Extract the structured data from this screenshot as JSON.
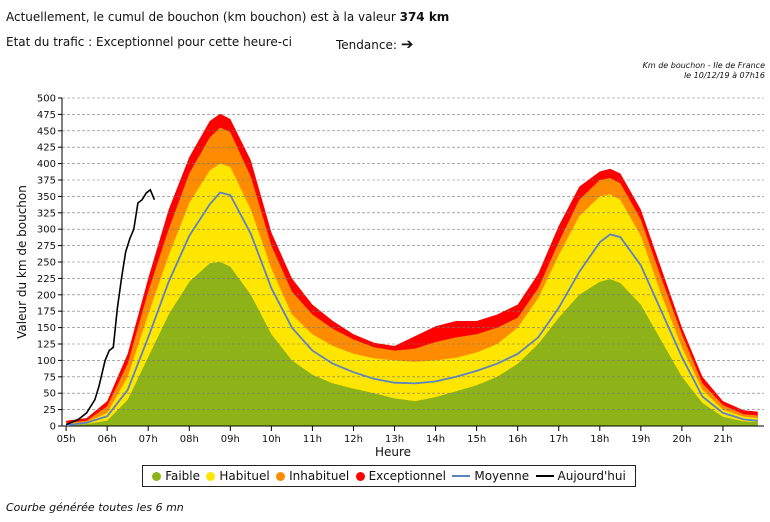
{
  "header": {
    "line1_prefix": "Actuellement, le cumul de bouchon (km bouchon) est à la valeur",
    "line1_value": "374 km",
    "line2": "Etat du trafic : Exceptionnel pour cette heure-ci",
    "trend_label": "Tendance:",
    "trend_icon": "right-arrow-icon",
    "stamp_line1": "Km de bouchon - Ile de France",
    "stamp_line2": "le 10/12/19 à 07h16"
  },
  "footer": "Courbe générée toutes les 6 mn",
  "colors": {
    "faible": "#8db319",
    "habituel": "#ffe600",
    "inhabituel": "#ff8c00",
    "exceptionnel": "#ff0000",
    "moyenne": "#5b83c0",
    "aujourdhui": "#000000"
  },
  "legend": [
    {
      "label": "Faible",
      "key": "faible",
      "kind": "dot"
    },
    {
      "label": "Habituel",
      "key": "habituel",
      "kind": "dot"
    },
    {
      "label": "Inhabituel",
      "key": "inhabituel",
      "kind": "dot"
    },
    {
      "label": "Exceptionnel",
      "key": "exceptionnel",
      "kind": "dot"
    },
    {
      "label": "Moyenne",
      "key": "moyenne",
      "kind": "line"
    },
    {
      "label": "Aujourd'hui",
      "key": "aujourdhui",
      "kind": "line"
    }
  ],
  "chart_data": {
    "type": "area",
    "title": "Km de bouchon - Ile de France",
    "xlabel": "Heure",
    "ylabel": "Valeur du  km de bouchon",
    "xlim": [
      4.9,
      22
    ],
    "ylim": [
      0,
      500
    ],
    "yticks": [
      0,
      25,
      50,
      75,
      100,
      125,
      150,
      175,
      200,
      225,
      250,
      275,
      300,
      325,
      350,
      375,
      400,
      425,
      450,
      475,
      500
    ],
    "xticks": [
      {
        "h": 5,
        "label": "05h"
      },
      {
        "h": 6,
        "label": "06h"
      },
      {
        "h": 7,
        "label": "07h"
      },
      {
        "h": 8,
        "label": "08h"
      },
      {
        "h": 9,
        "label": "09h"
      },
      {
        "h": 10,
        "label": "10h"
      },
      {
        "h": 11,
        "label": "11h"
      },
      {
        "h": 12,
        "label": "12h"
      },
      {
        "h": 13,
        "label": "13h"
      },
      {
        "h": 14,
        "label": "14h"
      },
      {
        "h": 15,
        "label": "15h"
      },
      {
        "h": 16,
        "label": "16h"
      },
      {
        "h": 17,
        "label": "17h"
      },
      {
        "h": 18,
        "label": "18h"
      },
      {
        "h": 19,
        "label": "19h"
      },
      {
        "h": 20,
        "label": "20h"
      },
      {
        "h": 21,
        "label": "21h"
      }
    ],
    "grid": true,
    "x": [
      5.0,
      5.5,
      6.0,
      6.5,
      7.0,
      7.5,
      8.0,
      8.5,
      8.75,
      9.0,
      9.5,
      10.0,
      10.5,
      11.0,
      11.5,
      12.0,
      12.5,
      13.0,
      13.5,
      14.0,
      14.5,
      15.0,
      15.5,
      16.0,
      16.5,
      17.0,
      17.5,
      18.0,
      18.25,
      18.5,
      19.0,
      19.5,
      20.0,
      20.5,
      21.0,
      21.5,
      21.85
    ],
    "bands": {
      "faible": [
        0,
        3,
        8,
        40,
        105,
        170,
        220,
        248,
        250,
        243,
        200,
        140,
        100,
        78,
        65,
        57,
        50,
        42,
        38,
        44,
        53,
        62,
        75,
        95,
        125,
        165,
        200,
        220,
        224,
        218,
        185,
        130,
        75,
        35,
        14,
        7,
        6
      ],
      "habituel": [
        3,
        6,
        20,
        75,
        170,
        260,
        340,
        390,
        400,
        395,
        330,
        240,
        170,
        140,
        122,
        110,
        103,
        100,
        98,
        100,
        104,
        112,
        125,
        150,
        195,
        260,
        320,
        350,
        353,
        345,
        290,
        200,
        120,
        55,
        25,
        14,
        12
      ],
      "inhabituel": [
        5,
        8,
        30,
        95,
        205,
        300,
        385,
        440,
        455,
        448,
        380,
        275,
        205,
        170,
        148,
        132,
        120,
        115,
        118,
        128,
        135,
        140,
        150,
        165,
        210,
        280,
        345,
        375,
        378,
        370,
        315,
        225,
        140,
        65,
        32,
        18,
        16
      ],
      "exceptionnel": [
        8,
        12,
        38,
        110,
        225,
        330,
        410,
        465,
        476,
        468,
        405,
        295,
        225,
        185,
        160,
        140,
        127,
        122,
        137,
        152,
        160,
        160,
        170,
        185,
        232,
        305,
        365,
        388,
        392,
        385,
        330,
        240,
        150,
        75,
        38,
        24,
        22
      ]
    },
    "series": [
      {
        "name": "Moyenne",
        "key": "moyenne",
        "x": [
          5.0,
          5.5,
          6.0,
          6.5,
          7.0,
          7.5,
          8.0,
          8.5,
          8.75,
          9.0,
          9.5,
          10.0,
          10.5,
          11.0,
          11.5,
          12.0,
          12.5,
          13.0,
          13.5,
          14.0,
          14.5,
          15.0,
          15.5,
          16.0,
          16.5,
          17.0,
          17.5,
          18.0,
          18.25,
          18.5,
          19.0,
          19.5,
          20.0,
          20.5,
          21.0,
          21.5,
          21.85
        ],
        "values": [
          1,
          5,
          15,
          55,
          135,
          220,
          290,
          338,
          356,
          352,
          293,
          210,
          150,
          115,
          95,
          82,
          72,
          66,
          65,
          68,
          75,
          84,
          95,
          110,
          135,
          180,
          235,
          280,
          292,
          288,
          245,
          175,
          105,
          45,
          20,
          10,
          8
        ]
      },
      {
        "name": "Aujourd'hui",
        "key": "aujourdhui",
        "x": [
          5.0,
          5.3,
          5.5,
          5.7,
          5.8,
          5.95,
          6.05,
          6.15,
          6.25,
          6.35,
          6.45,
          6.55,
          6.65,
          6.75,
          6.85,
          6.95,
          7.05,
          7.15
        ],
        "values": [
          2,
          10,
          20,
          40,
          60,
          100,
          115,
          120,
          180,
          225,
          265,
          285,
          300,
          340,
          345,
          355,
          360,
          345
        ]
      }
    ]
  }
}
